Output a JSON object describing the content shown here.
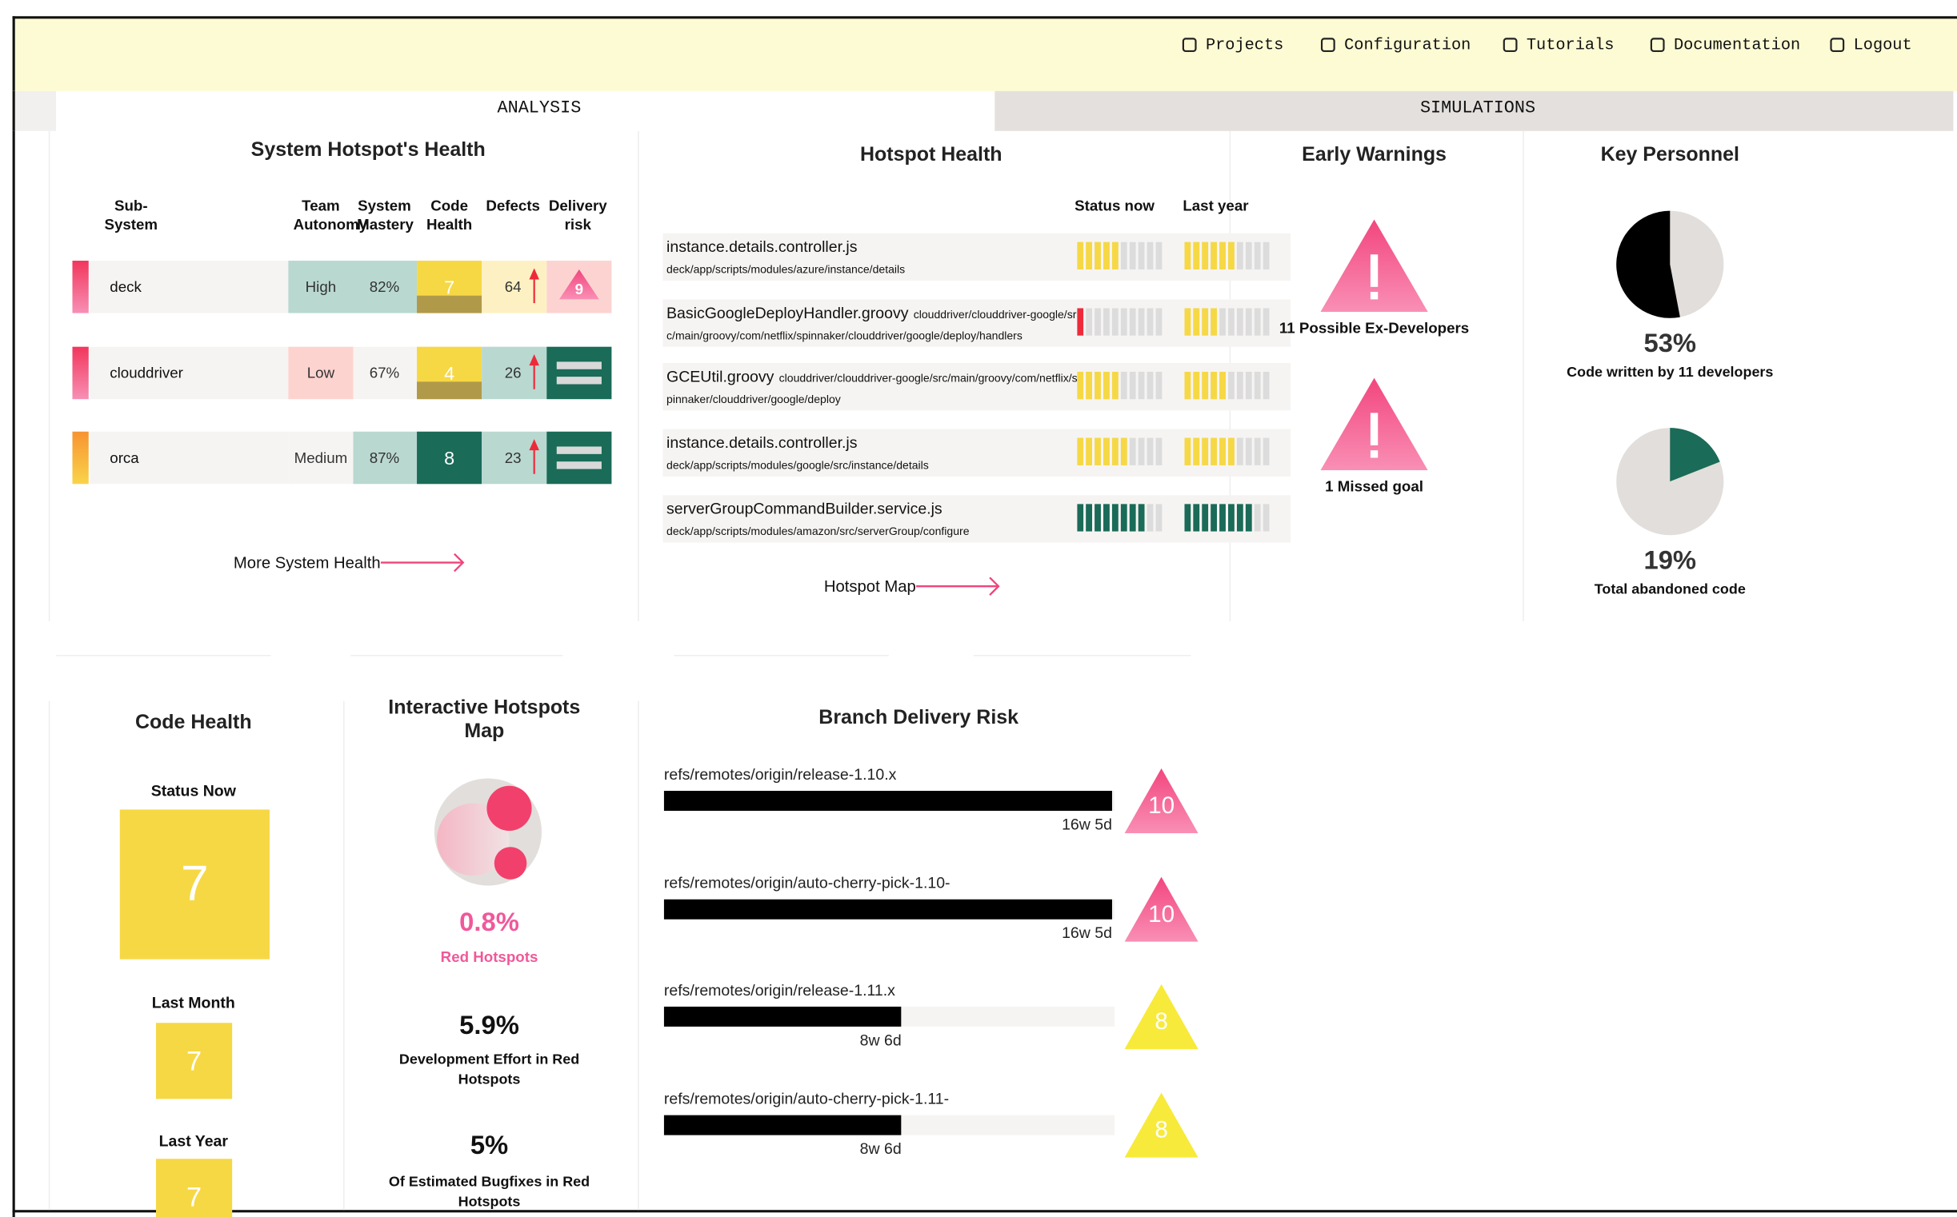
{
  "nav": {
    "items": [
      "Projects",
      "Configuration",
      "Tutorials",
      "Documentation",
      "Logout"
    ]
  },
  "tabs": [
    "ANALYSIS",
    "SIMULATIONS"
  ],
  "system_health": {
    "title": "System Hotspot's Health",
    "columns": [
      "Sub-System",
      "Team Autonomy",
      "System Mastery",
      "Code Health",
      "Defects",
      "Delivery risk"
    ],
    "rows": [
      {
        "name": "deck",
        "autonomy": "High",
        "mastery": "82%",
        "code_health": 7,
        "defects": 64,
        "delivery_risk": 9,
        "stripe": [
          "#f2365c",
          "#f78fb5"
        ],
        "autonomy_color": "#b9d8d0",
        "mastery_color": "#b9d8d0",
        "code_health_color": "#f6d845",
        "defects_color": "#fdf1c4",
        "risk_color": "#fcd3d0"
      },
      {
        "name": "clouddriver",
        "autonomy": "Low",
        "mastery": "67%",
        "code_health": 4,
        "defects": 26,
        "stripe": [
          "#f2365c",
          "#f78fb5"
        ],
        "autonomy_color": "#fdd3cf",
        "mastery_color": "#f6f4f2",
        "code_health_color": "#f6d845",
        "defects_color": "#b9d8d0",
        "risk_color": "#1a6b58"
      },
      {
        "name": "orca",
        "autonomy": "Medium",
        "mastery": "87%",
        "code_health": 8,
        "defects": 23,
        "stripe": [
          "#f79331",
          "#f9d44a"
        ],
        "autonomy_color": "#f6f4f2",
        "mastery_color": "#b9d8d0",
        "code_health_color": "#1a6b58",
        "defects_color": "#b9d8d0",
        "risk_color": "#1a6b58"
      }
    ],
    "link": "More System Health"
  },
  "hotspot_health": {
    "title": "Hotspot Health",
    "columns": [
      "Status now",
      "Last year"
    ],
    "rows": [
      {
        "file": "instance.details.controller.js",
        "path": "deck/app/scripts/modules/azure/instance/details",
        "status_now": 5,
        "last_year": 6,
        "now_color": "#f6d845",
        "year_color": "#f6d845"
      },
      {
        "file": "BasicGoogleDeployHandler.groovy",
        "path": "clouddriver/clouddriver-google/src/main/groovy/com/netflix/spinnaker/clouddriver/google/deploy/handlers",
        "status_now": 1,
        "last_year": 4,
        "now_color": "#ee2a3a",
        "year_color": "#f6d845"
      },
      {
        "file": "GCEUtil.groovy",
        "path": "clouddriver/clouddriver-google/src/main/groovy/com/netflix/spinnaker/clouddriver/google/deploy",
        "status_now": 5,
        "last_year": 5,
        "now_color": "#f6d845",
        "year_color": "#f6d845"
      },
      {
        "file": "instance.details.controller.js",
        "path": "deck/app/scripts/modules/google/src/instance/details",
        "status_now": 6,
        "last_year": 6,
        "now_color": "#f6d845",
        "year_color": "#f6d845"
      },
      {
        "file": "serverGroupCommandBuilder.service.js",
        "path": "deck/app/scripts/modules/amazon/src/serverGroup/configure",
        "status_now": 8,
        "last_year": 8,
        "now_color": "#1a6b58",
        "year_color": "#1a6b58"
      }
    ],
    "link": "Hotspot Map"
  },
  "early_warnings": {
    "title": "Early Warnings",
    "items": [
      "11 Possible Ex-Developers",
      "1 Missed goal"
    ]
  },
  "key_personnel": {
    "title": "Key Personnel",
    "items": [
      {
        "value": 53,
        "label": "53%",
        "caption": "Code written by 11 developers",
        "color": "#000000",
        "clockwise": false
      },
      {
        "value": 19,
        "label": "19%",
        "caption": "Total abandoned code",
        "color": "#1a6b58",
        "clockwise": true
      }
    ]
  },
  "code_health": {
    "title": "Code Health",
    "items": [
      {
        "label": "Status Now",
        "value": 7
      },
      {
        "label": "Last Month",
        "value": 7
      },
      {
        "label": "Last Year",
        "value": 7
      }
    ]
  },
  "hotspots_map": {
    "title": "Interactive Hotspots Map",
    "stats": [
      {
        "value": "0.8%",
        "label": "Red Hotspots"
      },
      {
        "value": "5.9%",
        "label": "Development Effort in Red Hotspots"
      },
      {
        "value": "5%",
        "label": "Of Estimated Bugfixes in Red Hotspots"
      }
    ]
  },
  "branch_risk": {
    "title": "Branch Delivery Risk",
    "rows": [
      {
        "branch": "refs/remotes/origin/release-1.10.x",
        "age": {
          "value": 117,
          "label": "16w 5d"
        },
        "risk": 10,
        "risk_color": [
          "#f2467e",
          "#f98fb5"
        ]
      },
      {
        "branch": "refs/remotes/origin/auto-cherry-pick-1.10-",
        "age": {
          "value": 117,
          "label": "16w 5d"
        },
        "risk": 10,
        "risk_color": [
          "#f2467e",
          "#f98fb5"
        ]
      },
      {
        "branch": "refs/remotes/origin/release-1.11.x",
        "age": {
          "value": 62,
          "label": "8w 6d"
        },
        "risk": 8,
        "risk_color": [
          "#f7ea3a",
          "#f7ea3a"
        ]
      },
      {
        "branch": "refs/remotes/origin/auto-cherry-pick-1.11-",
        "age": {
          "value": 62,
          "label": "8w 6d"
        },
        "risk": 8,
        "risk_color": [
          "#f7ea3a",
          "#f7ea3a"
        ]
      }
    ]
  }
}
